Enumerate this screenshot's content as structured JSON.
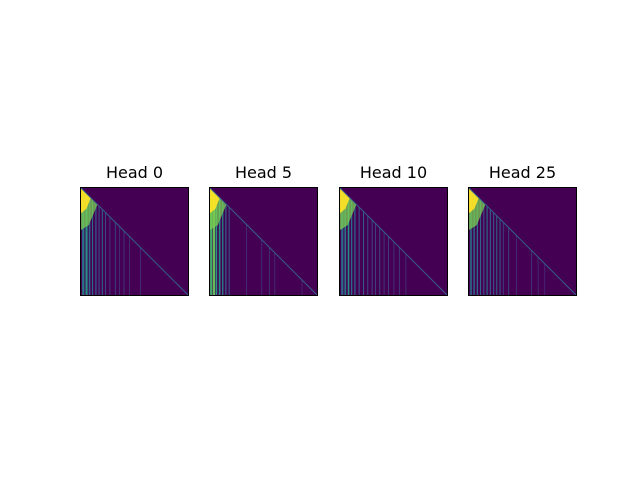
{
  "chart_data": {
    "type": "heatmap",
    "colormap": "viridis",
    "mask": "lower-triangular (causal)",
    "panels": [
      {
        "title": "Head 0",
        "stripes": [
          {
            "x": 0.02,
            "w": 0.02,
            "v": 0.45
          },
          {
            "x": 0.05,
            "w": 0.02,
            "v": 0.55
          },
          {
            "x": 0.08,
            "w": 0.015,
            "v": 0.35
          },
          {
            "x": 0.11,
            "w": 0.01,
            "v": 0.4
          },
          {
            "x": 0.14,
            "w": 0.012,
            "v": 0.3
          },
          {
            "x": 0.17,
            "w": 0.01,
            "v": 0.28
          },
          {
            "x": 0.2,
            "w": 0.01,
            "v": 0.35
          },
          {
            "x": 0.23,
            "w": 0.008,
            "v": 0.3
          },
          {
            "x": 0.27,
            "w": 0.008,
            "v": 0.22
          },
          {
            "x": 0.32,
            "w": 0.008,
            "v": 0.25
          },
          {
            "x": 0.36,
            "w": 0.006,
            "v": 0.2
          },
          {
            "x": 0.4,
            "w": 0.006,
            "v": 0.22
          },
          {
            "x": 0.45,
            "w": 0.005,
            "v": 0.18
          },
          {
            "x": 0.55,
            "w": 0.005,
            "v": 0.18
          }
        ]
      },
      {
        "title": "Head 5",
        "stripes": [
          {
            "x": 0.01,
            "w": 0.02,
            "v": 0.7
          },
          {
            "x": 0.035,
            "w": 0.02,
            "v": 0.78
          },
          {
            "x": 0.06,
            "w": 0.015,
            "v": 0.6
          },
          {
            "x": 0.09,
            "w": 0.015,
            "v": 0.55
          },
          {
            "x": 0.12,
            "w": 0.012,
            "v": 0.5
          },
          {
            "x": 0.15,
            "w": 0.01,
            "v": 0.4
          },
          {
            "x": 0.18,
            "w": 0.01,
            "v": 0.3
          },
          {
            "x": 0.34,
            "w": 0.005,
            "v": 0.18
          },
          {
            "x": 0.48,
            "w": 0.005,
            "v": 0.18
          },
          {
            "x": 0.55,
            "w": 0.005,
            "v": 0.2
          },
          {
            "x": 0.6,
            "w": 0.005,
            "v": 0.18
          },
          {
            "x": 0.85,
            "w": 0.005,
            "v": 0.16
          }
        ]
      },
      {
        "title": "Head 10",
        "stripes": [
          {
            "x": 0.02,
            "w": 0.02,
            "v": 0.4
          },
          {
            "x": 0.05,
            "w": 0.015,
            "v": 0.45
          },
          {
            "x": 0.08,
            "w": 0.015,
            "v": 0.55
          },
          {
            "x": 0.11,
            "w": 0.012,
            "v": 0.4
          },
          {
            "x": 0.14,
            "w": 0.012,
            "v": 0.35
          },
          {
            "x": 0.18,
            "w": 0.01,
            "v": 0.3
          },
          {
            "x": 0.22,
            "w": 0.01,
            "v": 0.32
          },
          {
            "x": 0.26,
            "w": 0.008,
            "v": 0.3
          },
          {
            "x": 0.3,
            "w": 0.008,
            "v": 0.28
          },
          {
            "x": 0.33,
            "w": 0.008,
            "v": 0.25
          },
          {
            "x": 0.37,
            "w": 0.008,
            "v": 0.3
          },
          {
            "x": 0.41,
            "w": 0.006,
            "v": 0.22
          },
          {
            "x": 0.45,
            "w": 0.006,
            "v": 0.25
          },
          {
            "x": 0.5,
            "w": 0.006,
            "v": 0.2
          },
          {
            "x": 0.55,
            "w": 0.006,
            "v": 0.22
          },
          {
            "x": 0.61,
            "w": 0.005,
            "v": 0.18
          }
        ]
      },
      {
        "title": "Head 25",
        "stripes": [
          {
            "x": 0.02,
            "w": 0.015,
            "v": 0.4
          },
          {
            "x": 0.05,
            "w": 0.012,
            "v": 0.45
          },
          {
            "x": 0.08,
            "w": 0.012,
            "v": 0.38
          },
          {
            "x": 0.11,
            "w": 0.01,
            "v": 0.35
          },
          {
            "x": 0.14,
            "w": 0.01,
            "v": 0.3
          },
          {
            "x": 0.17,
            "w": 0.01,
            "v": 0.42
          },
          {
            "x": 0.2,
            "w": 0.01,
            "v": 0.35
          },
          {
            "x": 0.23,
            "w": 0.01,
            "v": 0.3
          },
          {
            "x": 0.26,
            "w": 0.008,
            "v": 0.45
          },
          {
            "x": 0.29,
            "w": 0.008,
            "v": 0.4
          },
          {
            "x": 0.32,
            "w": 0.006,
            "v": 0.25
          },
          {
            "x": 0.37,
            "w": 0.006,
            "v": 0.3
          },
          {
            "x": 0.44,
            "w": 0.005,
            "v": 0.18
          },
          {
            "x": 0.58,
            "w": 0.005,
            "v": 0.2
          },
          {
            "x": 0.64,
            "w": 0.005,
            "v": 0.18
          },
          {
            "x": 0.7,
            "w": 0.005,
            "v": 0.16
          }
        ]
      }
    ]
  }
}
